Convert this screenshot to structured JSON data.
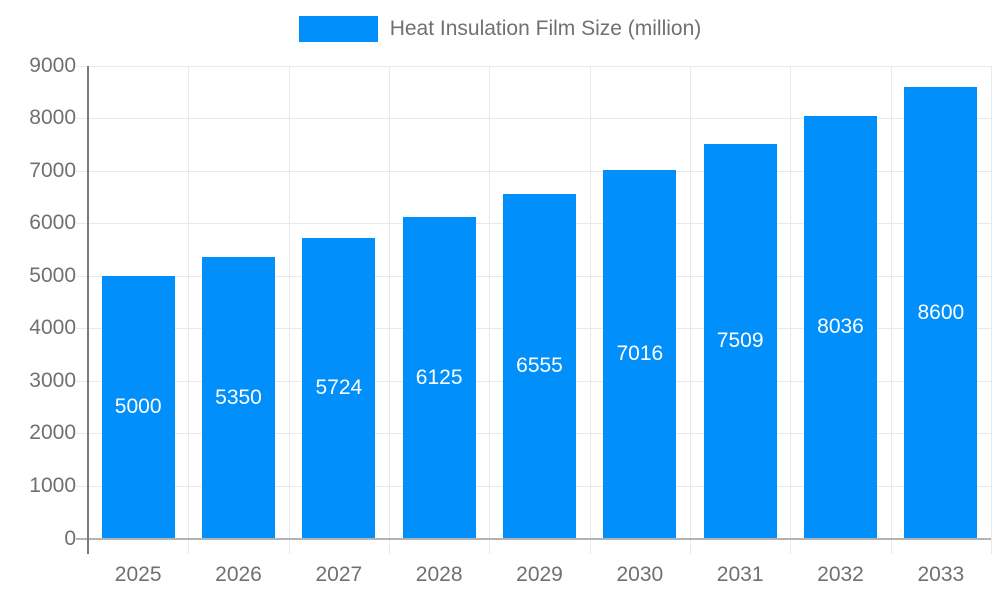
{
  "chart_data": {
    "type": "bar",
    "title": "Heat Insulation Film Size (million)",
    "series_name": "Heat Insulation Film Size (million)",
    "categories": [
      "2025",
      "2026",
      "2027",
      "2028",
      "2029",
      "2030",
      "2031",
      "2032",
      "2033"
    ],
    "values": [
      5000,
      5350,
      5724,
      6125,
      6555,
      7016,
      7509,
      8036,
      8600
    ],
    "value_labels": [
      "5000",
      "5350",
      "5724",
      "6125",
      "6555",
      "7016",
      "7509",
      "8036",
      "8600"
    ],
    "xlabel": "",
    "ylabel": "",
    "ylim": [
      0,
      9000
    ],
    "ytick_step": 1000,
    "ytick_labels": [
      "0",
      "1000",
      "2000",
      "3000",
      "4000",
      "5000",
      "6000",
      "7000",
      "8000",
      "9000"
    ],
    "grid": true,
    "legend_position": "top-center",
    "value_label_position": "inside-center",
    "colors": {
      "bar": "#008FFB",
      "text": "#707070",
      "grid": "#e9e9e9",
      "axis": "#7a7a7a",
      "baseline": "#b3b3b3",
      "value_label": "#ffffff",
      "background": "#ffffff"
    }
  }
}
